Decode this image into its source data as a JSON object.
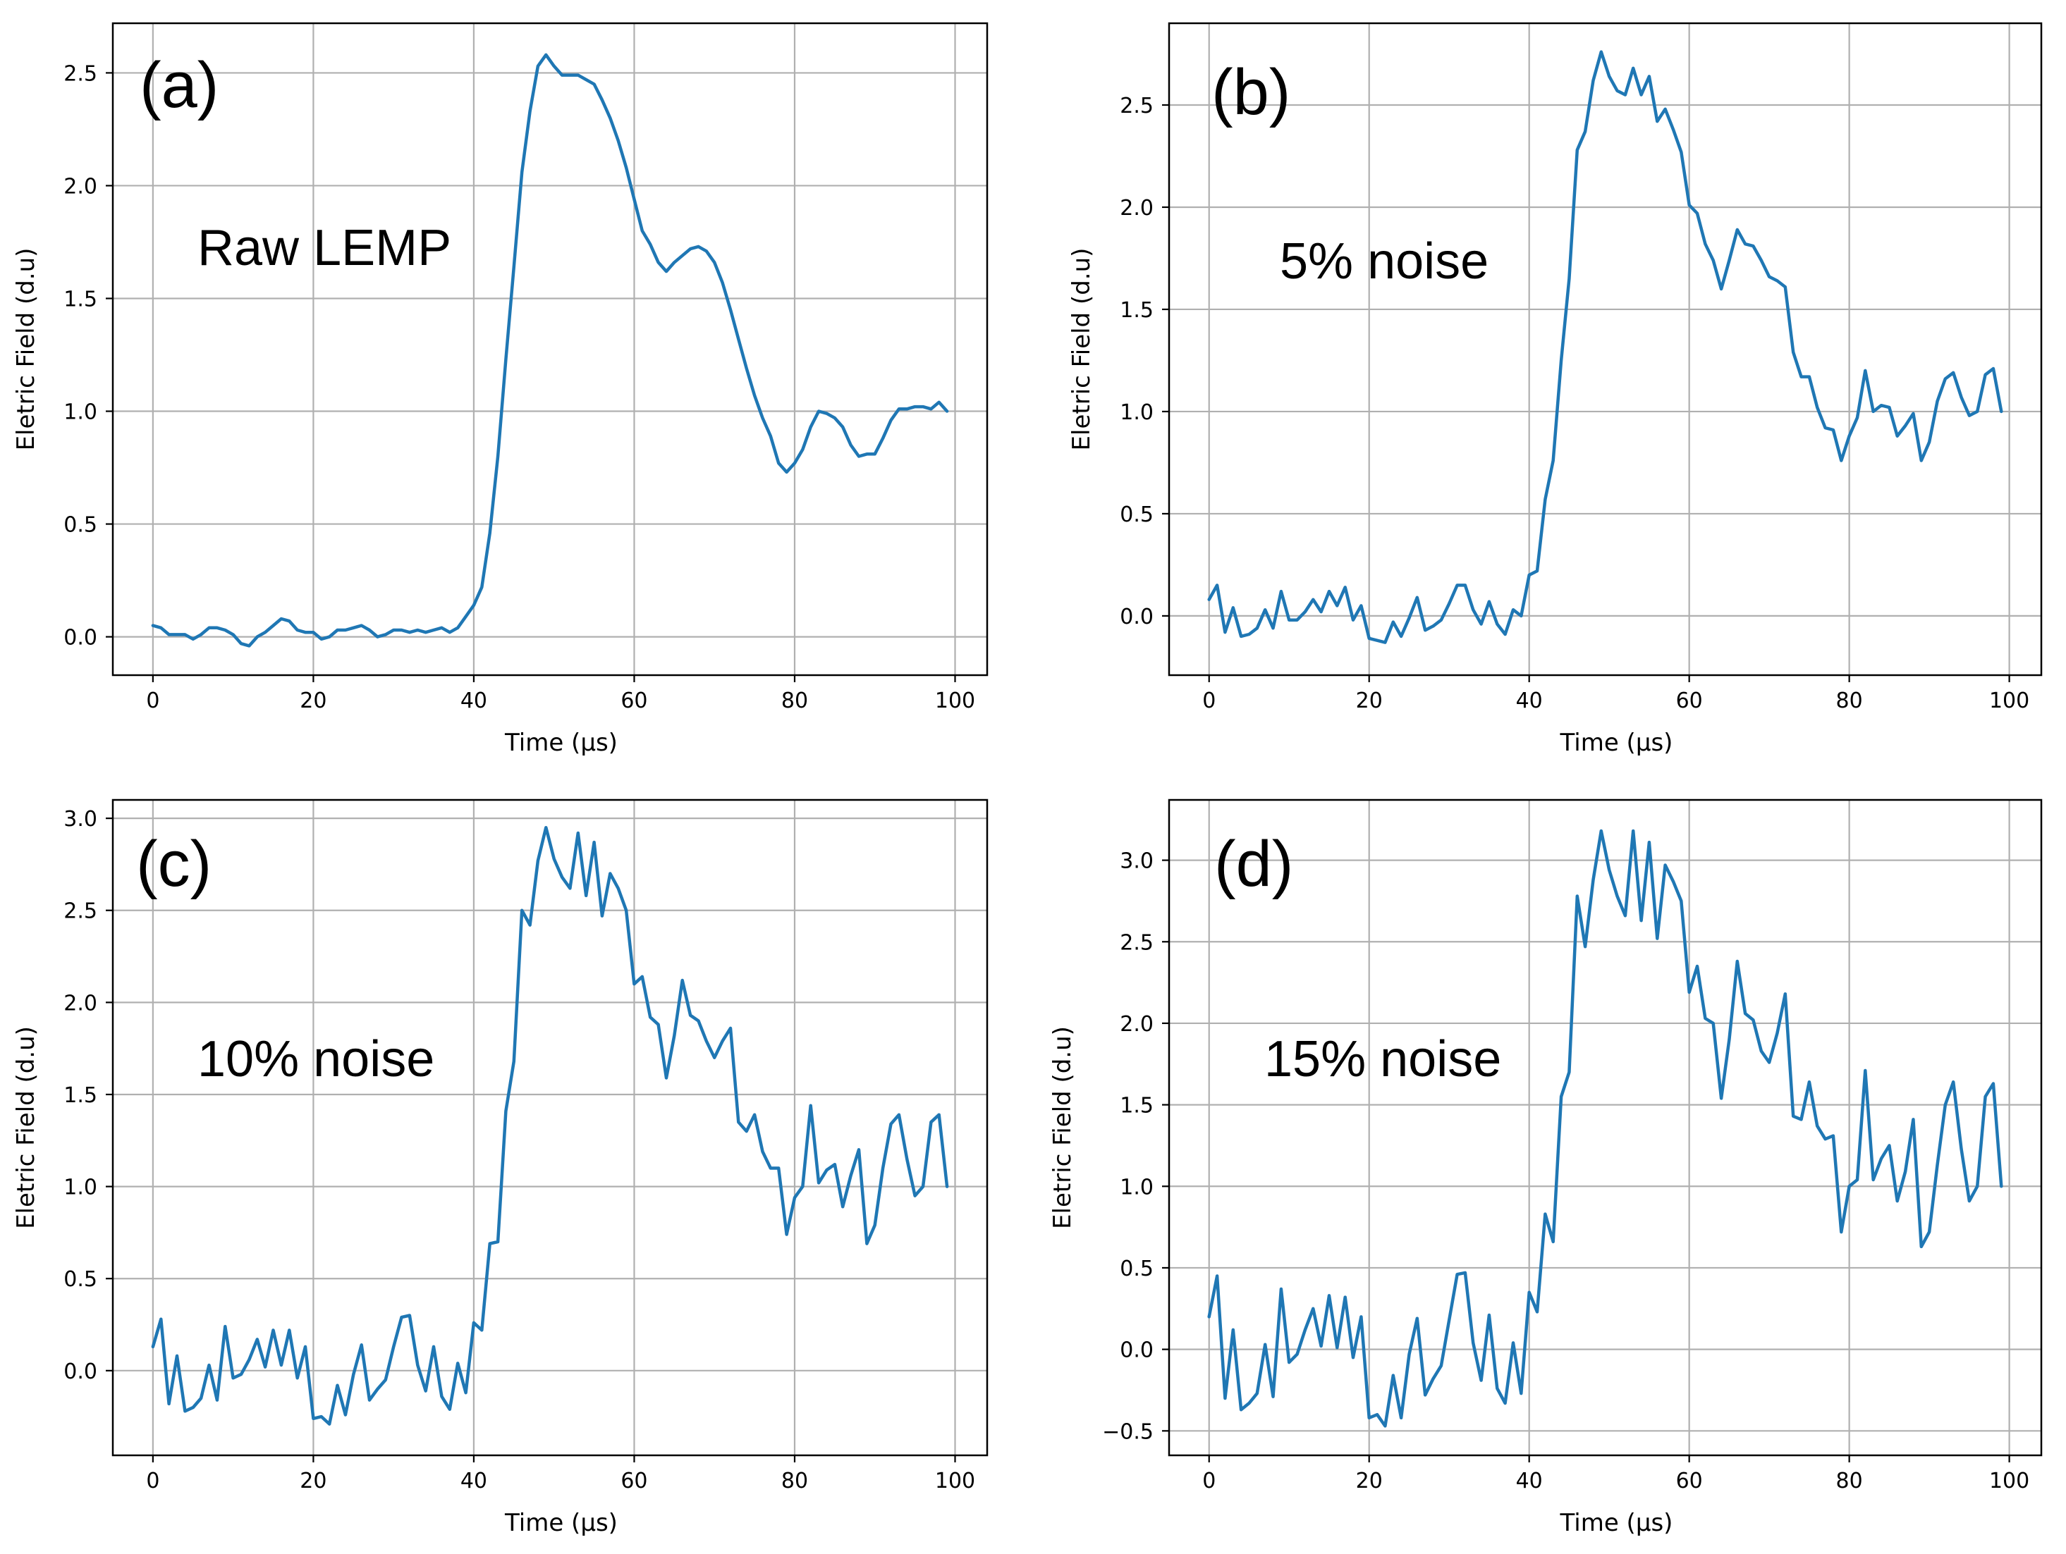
{
  "chart_data": [
    {
      "type": "line",
      "panel_label": "(a)",
      "annotation": "Raw LEMP",
      "xlabel": "Time (μs)",
      "ylabel": "Eletric Field (d.u)",
      "xlim": [
        -5,
        104
      ],
      "ylim": [
        -0.17,
        2.72
      ],
      "xticks": [
        0,
        20,
        40,
        60,
        80,
        100
      ],
      "yticks": [
        0.0,
        0.5,
        1.0,
        1.5,
        2.0,
        2.5
      ],
      "grid": true,
      "color": "#1f77b4",
      "x": [
        0,
        1,
        2,
        3,
        4,
        5,
        6,
        7,
        8,
        9,
        10,
        11,
        12,
        13,
        14,
        15,
        16,
        17,
        18,
        19,
        20,
        21,
        22,
        23,
        24,
        25,
        26,
        27,
        28,
        29,
        30,
        31,
        32,
        33,
        34,
        35,
        36,
        37,
        38,
        39,
        40,
        41,
        42,
        43,
        44,
        45,
        46,
        47,
        48,
        49,
        50,
        51,
        52,
        53,
        54,
        55,
        56,
        57,
        58,
        59,
        60,
        61,
        62,
        63,
        64,
        65,
        66,
        67,
        68,
        69,
        70,
        71,
        72,
        73,
        74,
        75,
        76,
        77,
        78,
        79,
        80,
        81,
        82,
        83,
        84,
        85,
        86,
        87,
        88,
        89,
        90,
        91,
        92,
        93,
        94,
        95,
        96,
        97,
        98,
        99
      ],
      "values": [
        0.05,
        0.04,
        0.01,
        0.01,
        0.01,
        -0.01,
        0.01,
        0.04,
        0.04,
        0.03,
        0.01,
        -0.03,
        -0.04,
        0.0,
        0.02,
        0.05,
        0.08,
        0.07,
        0.03,
        0.02,
        0.02,
        -0.01,
        0.0,
        0.03,
        0.03,
        0.04,
        0.05,
        0.03,
        0.0,
        0.01,
        0.03,
        0.03,
        0.02,
        0.03,
        0.02,
        0.03,
        0.04,
        0.02,
        0.04,
        0.09,
        0.14,
        0.22,
        0.46,
        0.8,
        1.23,
        1.64,
        2.06,
        2.33,
        2.53,
        2.58,
        2.53,
        2.49,
        2.49,
        2.49,
        2.47,
        2.45,
        2.38,
        2.3,
        2.2,
        2.08,
        1.94,
        1.8,
        1.74,
        1.66,
        1.62,
        1.66,
        1.69,
        1.72,
        1.73,
        1.71,
        1.66,
        1.57,
        1.45,
        1.32,
        1.19,
        1.07,
        0.97,
        0.89,
        0.77,
        0.73,
        0.77,
        0.83,
        0.93,
        1.0,
        0.99,
        0.97,
        0.93,
        0.85,
        0.8,
        0.81,
        0.81,
        0.88,
        0.96,
        1.01,
        1.01,
        1.02,
        1.02,
        1.01,
        1.04,
        1.0
      ]
    },
    {
      "type": "line",
      "panel_label": "(b)",
      "annotation": "5% noise",
      "xlabel": "Time (μs)",
      "ylabel": "Eletric Field (d.u)",
      "xlim": [
        -5,
        104
      ],
      "ylim": [
        -0.29,
        2.9
      ],
      "xticks": [
        0,
        20,
        40,
        60,
        80,
        100
      ],
      "yticks": [
        0.0,
        0.5,
        1.0,
        1.5,
        2.0,
        2.5
      ],
      "grid": true,
      "color": "#1f77b4",
      "x": [
        0,
        1,
        2,
        3,
        4,
        5,
        6,
        7,
        8,
        9,
        10,
        11,
        12,
        13,
        14,
        15,
        16,
        17,
        18,
        19,
        20,
        21,
        22,
        23,
        24,
        25,
        26,
        27,
        28,
        29,
        30,
        31,
        32,
        33,
        34,
        35,
        36,
        37,
        38,
        39,
        40,
        41,
        42,
        43,
        44,
        45,
        46,
        47,
        48,
        49,
        50,
        51,
        52,
        53,
        54,
        55,
        56,
        57,
        58,
        59,
        60,
        61,
        62,
        63,
        64,
        65,
        66,
        67,
        68,
        69,
        70,
        71,
        72,
        73,
        74,
        75,
        76,
        77,
        78,
        79,
        80,
        81,
        82,
        83,
        84,
        85,
        86,
        87,
        88,
        89,
        90,
        91,
        92,
        93,
        94,
        95,
        96,
        97,
        98,
        99
      ],
      "values": [
        0.08,
        0.15,
        -0.08,
        0.04,
        -0.1,
        -0.09,
        -0.06,
        0.03,
        -0.06,
        0.12,
        -0.02,
        -0.02,
        0.02,
        0.08,
        0.02,
        0.12,
        0.05,
        0.14,
        -0.02,
        0.05,
        -0.11,
        -0.12,
        -0.13,
        -0.03,
        -0.1,
        -0.01,
        0.09,
        -0.07,
        -0.05,
        -0.02,
        0.06,
        0.15,
        0.15,
        0.03,
        -0.04,
        0.07,
        -0.04,
        -0.09,
        0.03,
        0.0,
        0.2,
        0.22,
        0.57,
        0.76,
        1.25,
        1.65,
        2.28,
        2.37,
        2.62,
        2.76,
        2.64,
        2.57,
        2.55,
        2.68,
        2.55,
        2.64,
        2.42,
        2.48,
        2.38,
        2.27,
        2.01,
        1.97,
        1.82,
        1.74,
        1.6,
        1.74,
        1.89,
        1.82,
        1.81,
        1.74,
        1.66,
        1.64,
        1.61,
        1.29,
        1.17,
        1.17,
        1.02,
        0.92,
        0.91,
        0.76,
        0.88,
        0.97,
        1.2,
        1.0,
        1.03,
        1.02,
        0.88,
        0.93,
        0.99,
        0.76,
        0.85,
        1.05,
        1.16,
        1.19,
        1.07,
        0.98,
        1.0,
        1.18,
        1.21,
        1.0
      ]
    },
    {
      "type": "line",
      "panel_label": "(c)",
      "annotation": "10% noise",
      "xlabel": "Time (μs)",
      "ylabel": "Eletric Field (d.u)",
      "xlim": [
        -5,
        104
      ],
      "ylim": [
        -0.46,
        3.1
      ],
      "xticks": [
        0,
        20,
        40,
        60,
        80,
        100
      ],
      "yticks": [
        0.0,
        0.5,
        1.0,
        1.5,
        2.0,
        2.5,
        3.0
      ],
      "grid": true,
      "color": "#1f77b4",
      "x": [
        0,
        1,
        2,
        3,
        4,
        5,
        6,
        7,
        8,
        9,
        10,
        11,
        12,
        13,
        14,
        15,
        16,
        17,
        18,
        19,
        20,
        21,
        22,
        23,
        24,
        25,
        26,
        27,
        28,
        29,
        30,
        31,
        32,
        33,
        34,
        35,
        36,
        37,
        38,
        39,
        40,
        41,
        42,
        43,
        44,
        45,
        46,
        47,
        48,
        49,
        50,
        51,
        52,
        53,
        54,
        55,
        56,
        57,
        58,
        59,
        60,
        61,
        62,
        63,
        64,
        65,
        66,
        67,
        68,
        69,
        70,
        71,
        72,
        73,
        74,
        75,
        76,
        77,
        78,
        79,
        80,
        81,
        82,
        83,
        84,
        85,
        86,
        87,
        88,
        89,
        90,
        91,
        92,
        93,
        94,
        95,
        96,
        97,
        98,
        99
      ],
      "values": [
        0.13,
        0.28,
        -0.18,
        0.08,
        -0.22,
        -0.2,
        -0.15,
        0.03,
        -0.16,
        0.24,
        -0.04,
        -0.02,
        0.06,
        0.17,
        0.02,
        0.22,
        0.03,
        0.22,
        -0.04,
        0.13,
        -0.26,
        -0.25,
        -0.29,
        -0.08,
        -0.24,
        -0.02,
        0.14,
        -0.16,
        -0.1,
        -0.05,
        0.13,
        0.29,
        0.3,
        0.03,
        -0.11,
        0.13,
        -0.14,
        -0.21,
        0.04,
        -0.12,
        0.26,
        0.22,
        0.69,
        0.7,
        1.41,
        1.68,
        2.5,
        2.42,
        2.77,
        2.95,
        2.78,
        2.68,
        2.62,
        2.92,
        2.58,
        2.87,
        2.47,
        2.7,
        2.62,
        2.5,
        2.1,
        2.14,
        1.92,
        1.88,
        1.59,
        1.82,
        2.12,
        1.93,
        1.9,
        1.79,
        1.7,
        1.79,
        1.86,
        1.35,
        1.3,
        1.39,
        1.19,
        1.1,
        1.1,
        0.74,
        0.94,
        1.0,
        1.44,
        1.02,
        1.09,
        1.12,
        0.89,
        1.06,
        1.2,
        0.69,
        0.79,
        1.1,
        1.34,
        1.39,
        1.15,
        0.95,
        1.0,
        1.35,
        1.39,
        1.0
      ]
    },
    {
      "type": "line",
      "panel_label": "(d)",
      "annotation": "15% noise",
      "xlabel": "Time (μs)",
      "ylabel": "Eletric Field (d.u)",
      "xlim": [
        -5,
        104
      ],
      "ylim": [
        -0.65,
        3.37
      ],
      "xticks": [
        0,
        20,
        40,
        60,
        80,
        100
      ],
      "yticks": [
        -0.5,
        0.0,
        0.5,
        1.0,
        1.5,
        2.0,
        2.5,
        3.0
      ],
      "grid": true,
      "color": "#1f77b4",
      "x": [
        0,
        1,
        2,
        3,
        4,
        5,
        6,
        7,
        8,
        9,
        10,
        11,
        12,
        13,
        14,
        15,
        16,
        17,
        18,
        19,
        20,
        21,
        22,
        23,
        24,
        25,
        26,
        27,
        28,
        29,
        30,
        31,
        32,
        33,
        34,
        35,
        36,
        37,
        38,
        39,
        40,
        41,
        42,
        43,
        44,
        45,
        46,
        47,
        48,
        49,
        50,
        51,
        52,
        53,
        54,
        55,
        56,
        57,
        58,
        59,
        60,
        61,
        62,
        63,
        64,
        65,
        66,
        67,
        68,
        69,
        70,
        71,
        72,
        73,
        74,
        75,
        76,
        77,
        78,
        79,
        80,
        81,
        82,
        83,
        84,
        85,
        86,
        87,
        88,
        89,
        90,
        91,
        92,
        93,
        94,
        95,
        96,
        97,
        98,
        99
      ],
      "values": [
        0.2,
        0.45,
        -0.3,
        0.12,
        -0.37,
        -0.33,
        -0.27,
        0.03,
        -0.29,
        0.37,
        -0.08,
        -0.03,
        0.12,
        0.25,
        0.02,
        0.33,
        0.01,
        0.32,
        -0.05,
        0.2,
        -0.42,
        -0.4,
        -0.47,
        -0.16,
        -0.42,
        -0.03,
        0.19,
        -0.28,
        -0.18,
        -0.1,
        0.18,
        0.46,
        0.47,
        0.04,
        -0.19,
        0.21,
        -0.24,
        -0.33,
        0.04,
        -0.27,
        0.35,
        0.23,
        0.83,
        0.66,
        1.55,
        1.7,
        2.78,
        2.47,
        2.88,
        3.18,
        2.94,
        2.78,
        2.66,
        3.18,
        2.63,
        3.11,
        2.52,
        2.97,
        2.87,
        2.75,
        2.19,
        2.35,
        2.03,
        2.0,
        1.54,
        1.9,
        2.38,
        2.06,
        2.02,
        1.83,
        1.76,
        1.94,
        2.18,
        1.43,
        1.41,
        1.64,
        1.37,
        1.29,
        1.31,
        0.72,
        1.0,
        1.04,
        1.71,
        1.04,
        1.17,
        1.25,
        0.91,
        1.09,
        1.41,
        0.63,
        0.72,
        1.13,
        1.5,
        1.64,
        1.23,
        0.91,
        1.0,
        1.55,
        1.63,
        1.0
      ]
    }
  ]
}
